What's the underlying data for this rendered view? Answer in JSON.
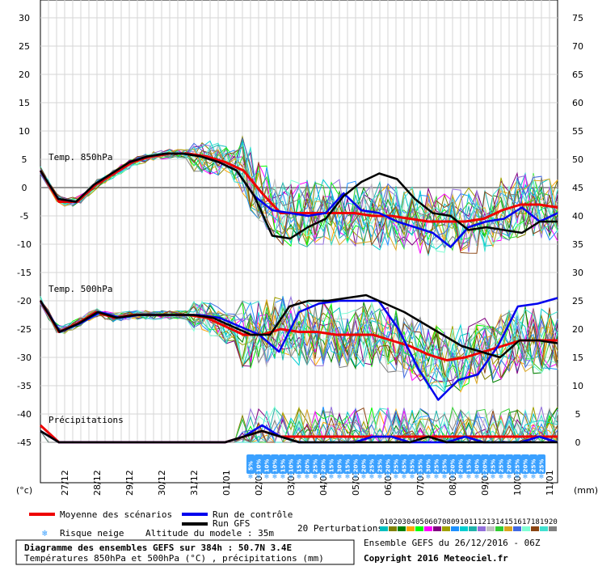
{
  "chart_data": {
    "type": "line",
    "sections": [
      {
        "title": "Temp. 850hPa"
      },
      {
        "title": "Temp. 500hPa"
      },
      {
        "title": "Précipitations"
      }
    ],
    "y_left": {
      "min": -45,
      "max": 30,
      "ticks": [
        "30",
        "25",
        "20",
        "15",
        "10",
        "5",
        "0",
        "-5",
        "-10",
        "-15",
        "-20",
        "-25",
        "-30",
        "-35",
        "-40",
        "-45"
      ]
    },
    "y_right": {
      "min": 0,
      "max": 75,
      "ticks": [
        "75",
        "70",
        "65",
        "60",
        "55",
        "50",
        "45",
        "40",
        "35",
        "30",
        "25",
        "20",
        "15",
        "10",
        "5",
        "0"
      ]
    },
    "y_left_unit": "(°c)",
    "y_right_unit": "(mm)",
    "x_ticks": [
      "27/12",
      "28/12",
      "29/12",
      "30/12",
      "31/12",
      "01/01",
      "02/01",
      "03/01",
      "04/01",
      "05/01",
      "06/01",
      "07/01",
      "08/01",
      "09/01",
      "10/01",
      "11/01"
    ],
    "x_range_hours": [
      0,
      384
    ],
    "series": [
      {
        "name": "Moyenne des scénarios",
        "color": "#ee0000",
        "t850": [
          3,
          -2.5,
          -2.5,
          0.5,
          2.5,
          4.5,
          5.5,
          6,
          6,
          5.5,
          4.5,
          3,
          -1,
          -4.5,
          -4.5,
          -4.5,
          -4.5,
          -4.5,
          -5,
          -5,
          -5.5,
          -6,
          -6,
          -6,
          -5.5,
          -4,
          -3,
          -3,
          -3.5
        ],
        "t500": [
          -20,
          -25.5,
          -24,
          -22,
          -23,
          -22.5,
          -22.5,
          -22.5,
          -22.5,
          -23,
          -24.5,
          -26,
          -26,
          -25,
          -25.5,
          -25.5,
          -26,
          -26,
          -26,
          -27,
          -28,
          -29.5,
          -30.5,
          -30,
          -29,
          -28,
          -27,
          -27,
          -27
        ],
        "precip": [
          3,
          0,
          0,
          0,
          0,
          0,
          0,
          0,
          0,
          0,
          0,
          1,
          2,
          1,
          1,
          1,
          1,
          1,
          1,
          1,
          1,
          1,
          1,
          1,
          1,
          1,
          1,
          1,
          1
        ]
      },
      {
        "name": "Run de contrôle",
        "color": "#0000ee",
        "t850": [
          3,
          -2,
          -2.5,
          0.5,
          2.5,
          4.5,
          5.5,
          6,
          6,
          5.5,
          4.5,
          3,
          -1.5,
          -4,
          -4.5,
          -5,
          -4.5,
          -1,
          -4,
          -4.5,
          -6,
          -7,
          -8,
          -10.5,
          -7,
          -6,
          -5.5,
          -3.5,
          -6,
          -4.5
        ],
        "t500": [
          -20,
          -25.5,
          -24,
          -22,
          -23,
          -22.5,
          -22.5,
          -22.5,
          -22.5,
          -23,
          -24.5,
          -26,
          -29,
          -22,
          -20.5,
          -20,
          -20,
          -20,
          -25,
          -32,
          -37.5,
          -34,
          -33,
          -28,
          -21,
          -20.5,
          -19.5
        ],
        "precip": [
          2,
          0,
          0,
          0,
          0,
          0,
          0,
          0,
          0,
          0,
          0,
          1,
          3,
          1,
          0,
          0,
          0,
          0,
          1,
          1,
          0,
          0,
          0,
          1,
          0,
          0,
          0,
          1,
          0
        ]
      },
      {
        "name": "Run GFS",
        "color": "#000000",
        "t850": [
          3,
          -2,
          -2.5,
          0.5,
          2.5,
          4.5,
          5.5,
          6,
          6,
          5.5,
          4.5,
          3,
          -1.5,
          -8.5,
          -9,
          -7,
          -5.5,
          -1.5,
          1,
          2.5,
          1.5,
          -2,
          -4.5,
          -5,
          -7.5,
          -7,
          -7.5,
          -8,
          -6,
          -6
        ],
        "t500": [
          -20,
          -25.5,
          -24,
          -22,
          -23,
          -22.5,
          -22.5,
          -22.5,
          -22.5,
          -23,
          -24.5,
          -26,
          -26,
          -21,
          -20,
          -20,
          -19.5,
          -19,
          -20.5,
          -22,
          -24,
          -26,
          -28,
          -29,
          -30,
          -27,
          -27,
          -27.5
        ],
        "precip": [
          2,
          0,
          0,
          0,
          0,
          0,
          0,
          0,
          0,
          0,
          0,
          1,
          2,
          1,
          0,
          0,
          0,
          0,
          0,
          0,
          0,
          1,
          0,
          0,
          0,
          0,
          0,
          0,
          0
        ]
      }
    ],
    "snow_risk": [
      "5%",
      "10%",
      "10%",
      "10%",
      "15%",
      "10%",
      "15%",
      "20%",
      "25%",
      "20%",
      "15%",
      "30%",
      "15%",
      "20%",
      "20%",
      "25%",
      "25%",
      "20%",
      "25%",
      "45%",
      "35%",
      "35%",
      "30%",
      "25%",
      "25%",
      "20%",
      "20%",
      "15%",
      "30%",
      "20%",
      "25%",
      "25%",
      "20%",
      "25%",
      "20%",
      "25%",
      "25%"
    ]
  },
  "legend": {
    "mean": "Moyenne des scénarios",
    "control": "Run de contrôle",
    "gfs": "Run GFS",
    "snow": "Risque neige",
    "altitude": "Altitude du modele : 35m",
    "perturbations": "20 Perturbations",
    "pert_numbers": [
      "01",
      "02",
      "03",
      "04",
      "05",
      "06",
      "07",
      "08",
      "09",
      "10",
      "11",
      "12",
      "13",
      "14",
      "15",
      "16",
      "17",
      "18",
      "19",
      "20"
    ],
    "pert_colors": [
      "#00bfbf",
      "#808000",
      "#008000",
      "#ffa500",
      "#00ff00",
      "#ff00ff",
      "#800080",
      "#a0a000",
      "#1e90ff",
      "#00ced1",
      "#20b2aa",
      "#9370db",
      "#c0c0c0",
      "#32cd32",
      "#daa520",
      "#4169e1",
      "#7fffd4",
      "#8b4513",
      "#40e0d0",
      "#808080"
    ]
  },
  "footer": {
    "line1": "Diagramme des ensembles GEFS sur 384h : 50.7N 3.4E",
    "line2": "Températures 850hPa et 500hPa (°C) , précipitations (mm)",
    "ensemble": "Ensemble GEFS du 26/12/2016 - 06Z",
    "copyright": "Copyright 2016 Meteociel.fr"
  }
}
